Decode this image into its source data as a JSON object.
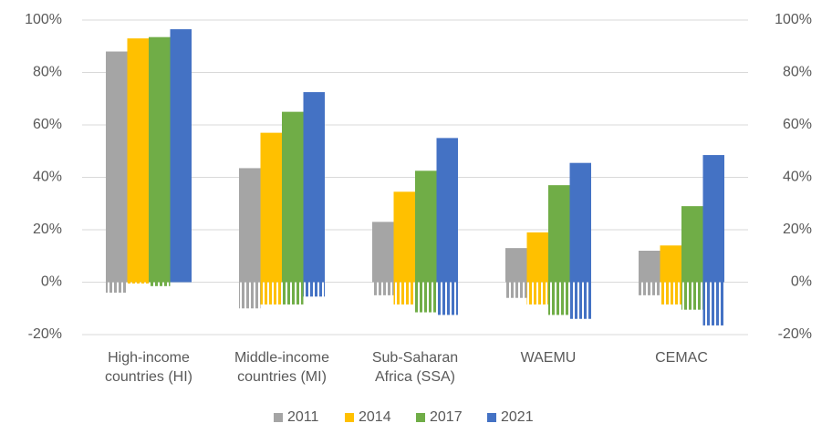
{
  "chart_data": {
    "type": "bar",
    "categories": [
      "High-income\ncountries (HI)",
      "Middle-income\ncountries (MI)",
      "Sub-Saharan\nAfrica (SSA)",
      "WAEMU",
      "CEMAC"
    ],
    "series": [
      {
        "name": "2011",
        "color": "#a5a5a5",
        "values": [
          88,
          43.5,
          23,
          13,
          12
        ],
        "gap_values": [
          -4,
          -10,
          -5,
          -6,
          -5
        ]
      },
      {
        "name": "2014",
        "color": "#ffc000",
        "values": [
          93,
          57,
          34.5,
          19,
          14
        ],
        "gap_values": [
          -0.5,
          -8.5,
          -8.5,
          -8.5,
          -8.5
        ]
      },
      {
        "name": "2017",
        "color": "#70ad47",
        "values": [
          93.5,
          65,
          42.5,
          37,
          29
        ],
        "gap_values": [
          -1.5,
          -8.5,
          -11.5,
          -12.5,
          -10.5
        ]
      },
      {
        "name": "2021",
        "color": "#4472c4",
        "values": [
          96.5,
          72.5,
          55,
          45.5,
          48.5
        ],
        "gap_values": [
          0.5,
          -5.5,
          -12.5,
          -14,
          -16.5
        ]
      }
    ],
    "ylim": [
      -20,
      100
    ],
    "yticks": [
      {
        "value": -20,
        "label": "-20%"
      },
      {
        "value": 0,
        "label": "0%"
      },
      {
        "value": 20,
        "label": "20%"
      },
      {
        "value": 40,
        "label": "40%"
      },
      {
        "value": 60,
        "label": "60%"
      },
      {
        "value": 80,
        "label": "80%"
      },
      {
        "value": 100,
        "label": "100%"
      }
    ],
    "y2lim": [
      -20,
      100
    ],
    "y2ticks": [
      {
        "value": -20,
        "label": "-20%"
      },
      {
        "value": 0,
        "label": "0%"
      },
      {
        "value": 20,
        "label": "20%"
      },
      {
        "value": 40,
        "label": "40%"
      },
      {
        "value": 60,
        "label": "60%"
      },
      {
        "value": 80,
        "label": "80%"
      },
      {
        "value": 100,
        "label": "100%"
      }
    ],
    "grid": true,
    "legend": "bottom"
  }
}
